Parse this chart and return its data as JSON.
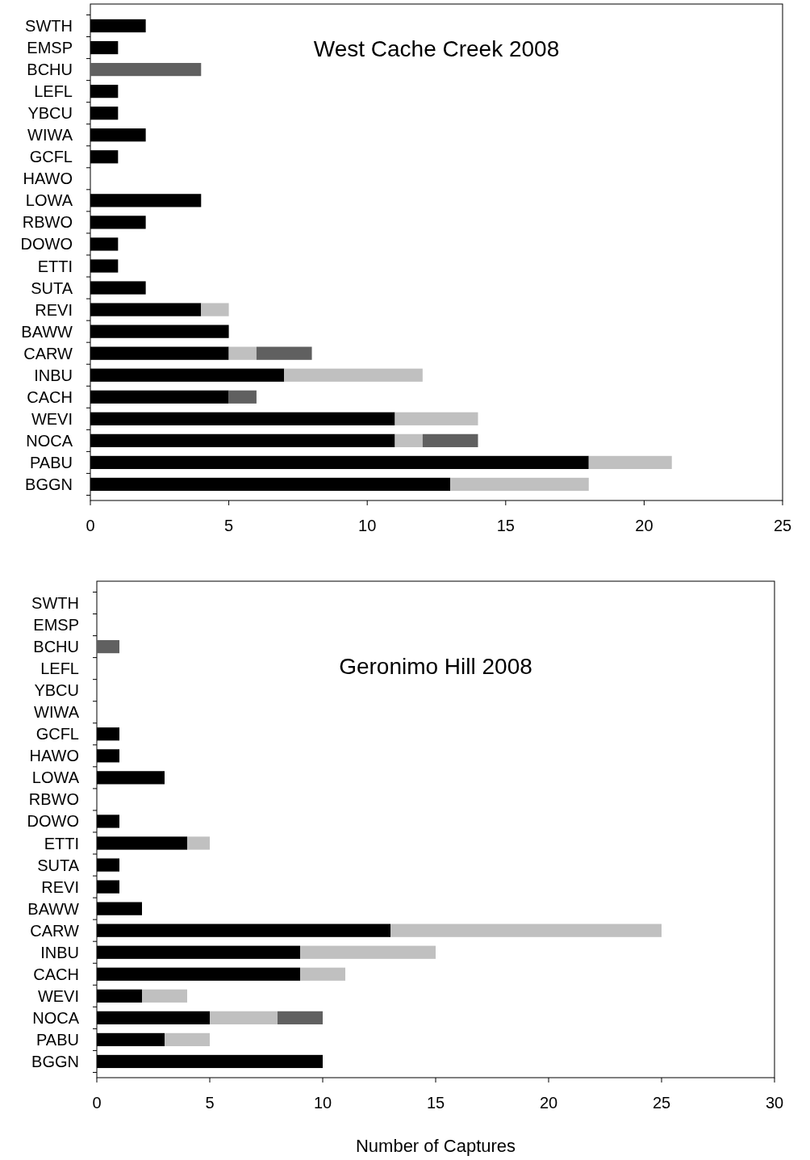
{
  "chart_data": [
    {
      "type": "bar",
      "orientation": "horizontal",
      "stacked": true,
      "title": "West Cache Creek 2008",
      "categories": [
        "SWTH",
        "EMSP",
        "BCHU",
        "LEFL",
        "YBCU",
        "WIWA",
        "GCFL",
        "HAWO",
        "LOWA",
        "RBWO",
        "DOWO",
        "ETTI",
        "SUTA",
        "REVI",
        "BAWW",
        "CARW",
        "INBU",
        "CACH",
        "WEVI",
        "NOCA",
        "PABU",
        "BGGN"
      ],
      "series": [
        {
          "color": "#000000",
          "values": [
            2,
            1,
            0,
            1,
            1,
            2,
            1,
            0,
            4,
            2,
            1,
            1,
            2,
            4,
            5,
            5,
            7,
            5,
            11,
            11,
            18,
            13
          ]
        },
        {
          "color": "#c0c0c0",
          "values": [
            0,
            0,
            0,
            0,
            0,
            0,
            0,
            0,
            0,
            0,
            0,
            0,
            0,
            1,
            0,
            1,
            5,
            0,
            3,
            1,
            3,
            5
          ]
        },
        {
          "color": "#606060",
          "values": [
            0,
            0,
            4,
            0,
            0,
            0,
            0,
            0,
            0,
            0,
            0,
            0,
            0,
            0,
            0,
            2,
            0,
            1,
            0,
            2,
            0,
            0
          ]
        }
      ],
      "xlim": [
        0,
        25
      ],
      "xticks": [
        0,
        5,
        10,
        15,
        20,
        25
      ],
      "grid": false
    },
    {
      "type": "bar",
      "orientation": "horizontal",
      "stacked": true,
      "title": "Geronimo Hill 2008",
      "xlabel": "Number of Captures",
      "categories": [
        "SWTH",
        "EMSP",
        "BCHU",
        "LEFL",
        "YBCU",
        "WIWA",
        "GCFL",
        "HAWO",
        "LOWA",
        "RBWO",
        "DOWO",
        "ETTI",
        "SUTA",
        "REVI",
        "BAWW",
        "CARW",
        "INBU",
        "CACH",
        "WEVI",
        "NOCA",
        "PABU",
        "BGGN"
      ],
      "series": [
        {
          "color": "#000000",
          "values": [
            0,
            0,
            0,
            0,
            0,
            0,
            1,
            1,
            3,
            0,
            1,
            4,
            1,
            1,
            2,
            13,
            9,
            9,
            2,
            5,
            3,
            10
          ]
        },
        {
          "color": "#c0c0c0",
          "values": [
            0,
            0,
            0,
            0,
            0,
            0,
            0,
            0,
            0,
            0,
            0,
            1,
            0,
            0,
            0,
            12,
            6,
            2,
            2,
            3,
            2,
            0
          ]
        },
        {
          "color": "#606060",
          "values": [
            0,
            0,
            1,
            0,
            0,
            0,
            0,
            0,
            0,
            0,
            0,
            0,
            0,
            0,
            0,
            0,
            0,
            0,
            0,
            2,
            0,
            0
          ]
        }
      ],
      "xlim": [
        0,
        30
      ],
      "xticks": [
        0,
        5,
        10,
        15,
        20,
        25,
        30
      ],
      "grid": false
    }
  ]
}
